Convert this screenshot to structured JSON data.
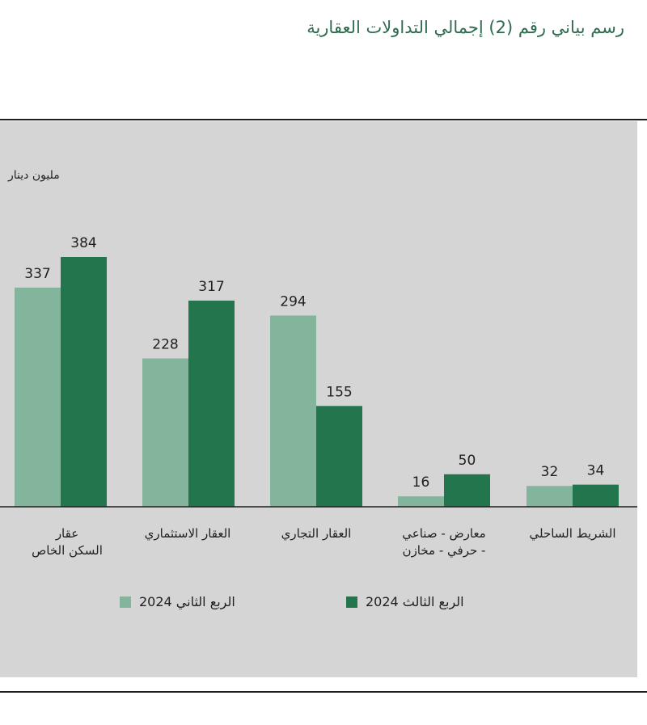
{
  "title": "رسم بياني رقم (2) إجمالي التداولات العقارية",
  "colors": {
    "q2": "#83b59c",
    "q3": "#23754d",
    "panel": "#d5d5d5"
  },
  "chart_data": {
    "type": "bar",
    "title": "رسم بياني رقم (2) إجمالي التداولات العقارية",
    "ylabel": "مليون دينار",
    "categories": [
      "عقار السكن الخاص",
      "العقار الاستثماري",
      "العقار التجاري",
      "معارض - صناعي - حرفي - مخازن",
      "الشريط الساحلي"
    ],
    "series": [
      {
        "name": "الربع الثاني 2024",
        "values": [
          337,
          228,
          294,
          16,
          32
        ]
      },
      {
        "name": "الربع الثالث 2024",
        "values": [
          384,
          317,
          155,
          50,
          34
        ]
      }
    ],
    "ylim": [
      0,
      400
    ],
    "grid": false,
    "legend": "bottom"
  },
  "x_labels": [
    [
      "عقار",
      "السكن الخاص"
    ],
    [
      "العقار الاستثماري"
    ],
    [
      "العقار التجاري"
    ],
    [
      "معارض - صناعي",
      "- حرفي - مخازن"
    ],
    [
      "الشريط الساحلي"
    ]
  ],
  "legend": {
    "q2": "الربع الثاني 2024",
    "q3": "الربع الثالث 2024"
  }
}
